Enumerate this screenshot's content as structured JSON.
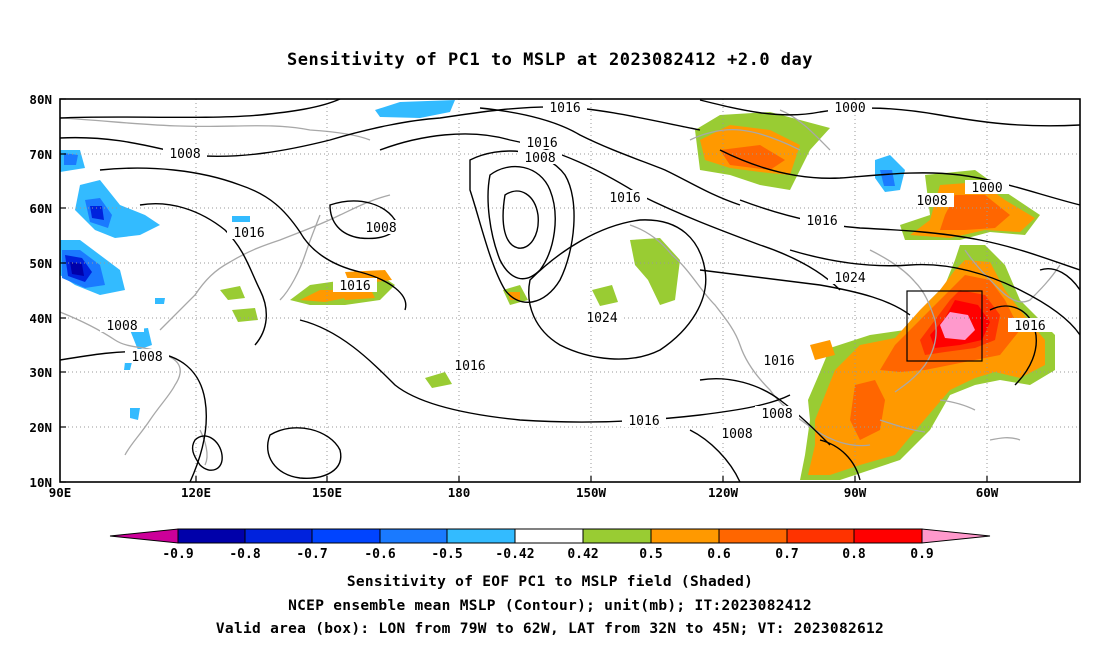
{
  "title": "Sensitivity of PC1 to MSLP at 2023082412 +2.0 day",
  "lat_labels": [
    "80N",
    "70N",
    "60N",
    "50N",
    "40N",
    "30N",
    "20N",
    "10N"
  ],
  "lon_labels": [
    "90E",
    "120E",
    "150E",
    "180",
    "150W",
    "120W",
    "90W",
    "60W"
  ],
  "colorbar": {
    "labels": [
      "-0.9",
      "-0.8",
      "-0.7",
      "-0.6",
      "-0.5",
      "-0.42",
      "0.42",
      "0.5",
      "0.6",
      "0.7",
      "0.8",
      "0.9"
    ],
    "colors": [
      "#cc0099",
      "#0000aa",
      "#0022dd",
      "#0044ff",
      "#1a7aff",
      "#33bbff",
      "#ffffff",
      "#99cc33",
      "#ff9900",
      "#ff6600",
      "#ff3300",
      "#ff0000",
      "#ff99cc"
    ]
  },
  "contour_labels": [
    {
      "text": "1016"
    },
    {
      "text": "1000"
    },
    {
      "text": "1016"
    },
    {
      "text": "1008"
    },
    {
      "text": "1008"
    },
    {
      "text": "1016"
    },
    {
      "text": "1008"
    },
    {
      "text": "1016"
    },
    {
      "text": "1000"
    },
    {
      "text": "1008"
    },
    {
      "text": "1016"
    },
    {
      "text": "1016"
    },
    {
      "text": "1024"
    },
    {
      "text": "1024"
    },
    {
      "text": "1008"
    },
    {
      "text": "1008"
    },
    {
      "text": "1016"
    },
    {
      "text": "1016"
    },
    {
      "text": "1016"
    },
    {
      "text": "1016"
    },
    {
      "text": "1008"
    },
    {
      "text": "1008"
    }
  ],
  "captions": {
    "line1": "Sensitivity of EOF PC1 to MSLP field (Shaded)",
    "line2": "NCEP ensemble mean MSLP (Contour); unit(mb); IT:2023082412",
    "line3": "Valid area (box): LON from 79W to 62W, LAT from 32N to 45N; VT: 2023082612"
  }
}
